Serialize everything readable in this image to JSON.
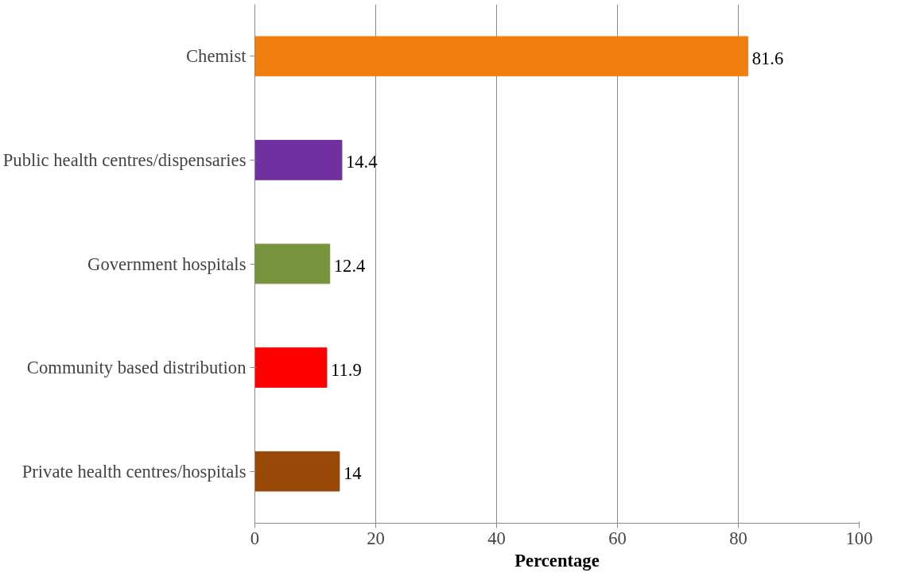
{
  "chart_data": {
    "type": "bar",
    "orientation": "horizontal",
    "xlabel": "Percentage",
    "categories": [
      "Chemist",
      "Public health centres/dispensaries",
      "Government hospitals",
      "Community based distribution",
      "Private health centres/hospitals"
    ],
    "values": [
      81.6,
      14.4,
      12.4,
      11.9,
      14
    ],
    "colors": [
      "#f07f0f",
      "#7030a0",
      "#77933c",
      "#ff0000",
      "#984807"
    ],
    "xlim": [
      0,
      100
    ],
    "xticks": [
      0,
      20,
      40,
      60,
      80,
      100
    ],
    "grid": "x",
    "data_labels": true
  }
}
